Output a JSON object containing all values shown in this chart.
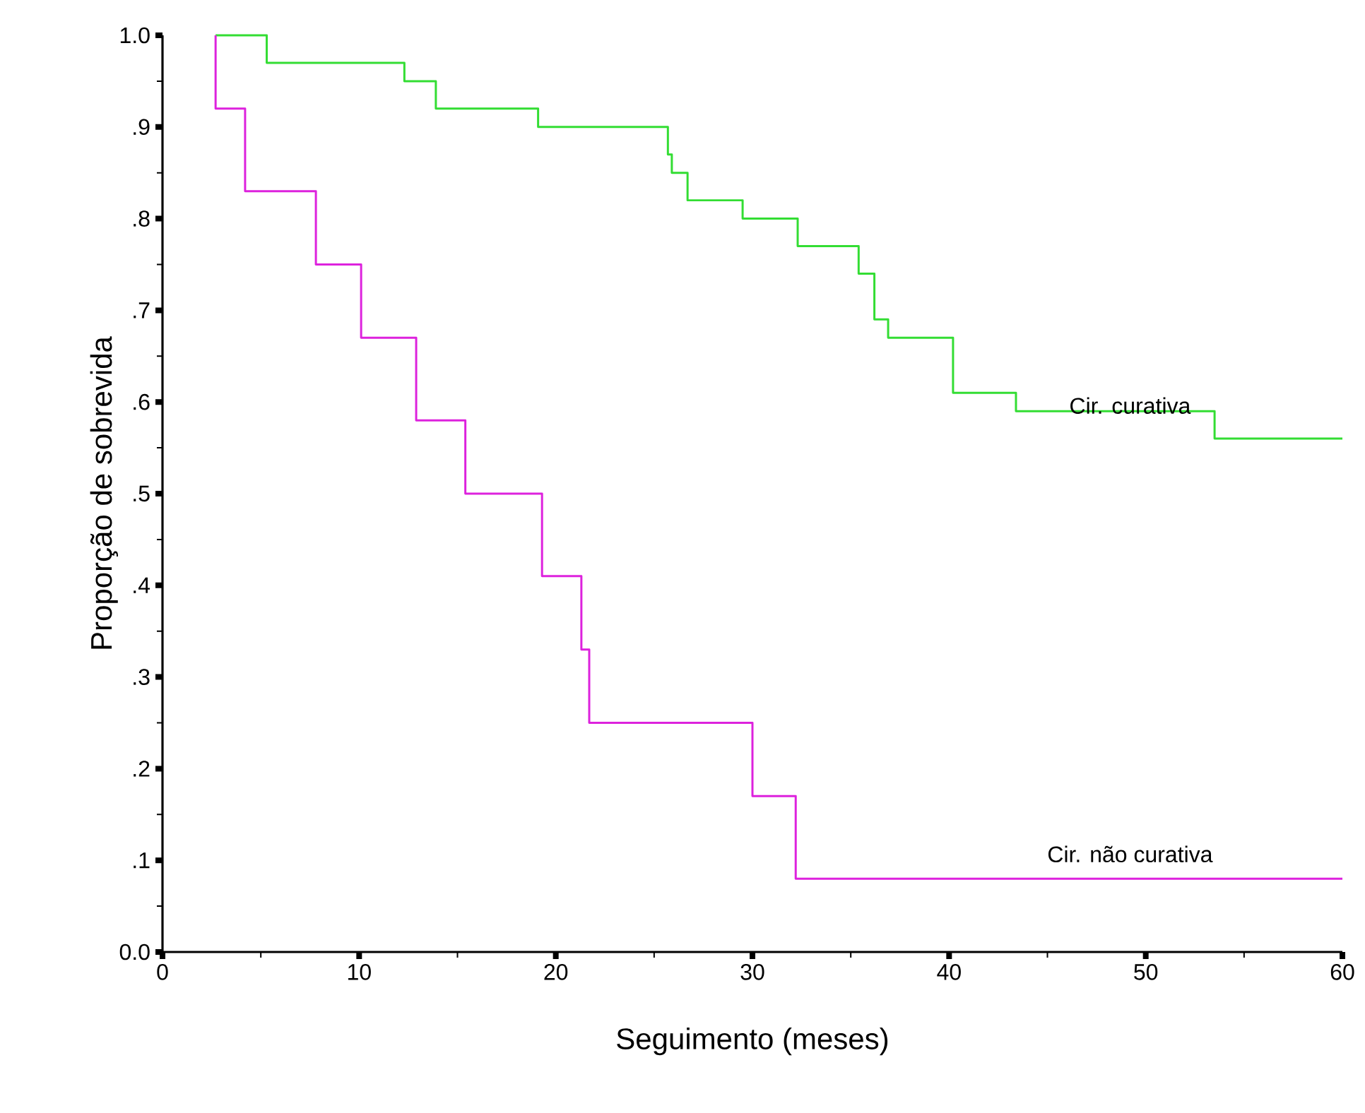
{
  "chart_data": {
    "type": "step",
    "xlabel": "Seguimento (meses)",
    "ylabel": "Proporção de sobrevida",
    "xlim": [
      0,
      60
    ],
    "xticks": [
      0,
      10,
      20,
      30,
      40,
      50,
      60
    ],
    "ylim": [
      0,
      1.0
    ],
    "yticks": [
      {
        "value": 0,
        "label": "0.0"
      },
      {
        "value": 0.1,
        "label": ".1"
      },
      {
        "value": 0.2,
        "label": ".2"
      },
      {
        "value": 0.3,
        "label": ".3"
      },
      {
        "value": 0.4,
        "label": ".4"
      },
      {
        "value": 0.5,
        "label": ".5"
      },
      {
        "value": 0.6,
        "label": ".6"
      },
      {
        "value": 0.7,
        "label": ".7"
      },
      {
        "value": 0.8,
        "label": ".8"
      },
      {
        "value": 0.9,
        "label": ".9"
      },
      {
        "value": 1.0,
        "label": "1.0"
      }
    ],
    "series": [
      {
        "name": "Cir. curativa",
        "color": "#33dd33",
        "x": [
          2.7,
          5.3,
          12.3,
          13.9,
          19.1,
          25.7,
          25.9,
          26.7,
          29.5,
          32.3,
          35.4,
          36.2,
          36.9,
          40.2,
          43.4,
          53.5,
          60
        ],
        "values": [
          1.0,
          0.97,
          0.95,
          0.92,
          0.9,
          0.87,
          0.85,
          0.82,
          0.8,
          0.77,
          0.74,
          0.69,
          0.67,
          0.61,
          0.59,
          0.56,
          0.56
        ]
      },
      {
        "name": "Cir. não curativa",
        "color": "#dd22dd",
        "x": [
          2.7,
          2.7,
          4.2,
          7.8,
          10.1,
          12.9,
          15.4,
          19.3,
          21.3,
          21.7,
          30.0,
          32.2,
          60
        ],
        "values": [
          1.0,
          0.92,
          0.83,
          0.75,
          0.67,
          0.58,
          0.5,
          0.41,
          0.33,
          0.25,
          0.17,
          0.08,
          0.08
        ]
      }
    ]
  }
}
